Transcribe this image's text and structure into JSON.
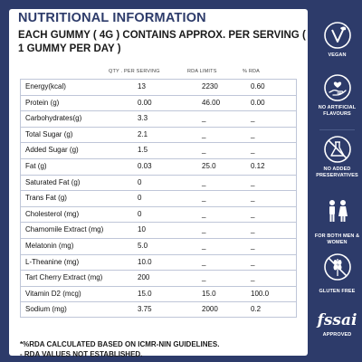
{
  "header": {
    "title": "NUTRITIONAL INFORMATION",
    "subtitle": "EACH GUMMY ( 4G ) CONTAINS APPROX. PER SERVING ( 1 GUMMY PER DAY )"
  },
  "table": {
    "columns": [
      "",
      "QTY . PER SERVING",
      "RDA LIMITS",
      "% RDA"
    ],
    "rows": [
      {
        "name": "Energy(kcal)",
        "qty": "13",
        "rda": "2230",
        "pct": "0.60"
      },
      {
        "name": "Protein (g)",
        "qty": "0.00",
        "rda": "46.00",
        "pct": "0.00"
      },
      {
        "name": "Carbohydrates(g)",
        "qty": "3.3",
        "rda": "_",
        "pct": "_"
      },
      {
        "name": "Total Sugar (g)",
        "qty": "2.1",
        "rda": "_",
        "pct": "_"
      },
      {
        "name": "Added Sugar (g)",
        "qty": "1.5",
        "rda": "_",
        "pct": "_"
      },
      {
        "name": "Fat (g)",
        "qty": "0.03",
        "rda": "25.0",
        "pct": "0.12"
      },
      {
        "name": "Saturated Fat (g)",
        "qty": "0",
        "rda": "_",
        "pct": "_"
      },
      {
        "name": "Trans Fat (g)",
        "qty": "0",
        "rda": "_",
        "pct": "_"
      },
      {
        "name": "Cholesterol (mg)",
        "qty": "0",
        "rda": "_",
        "pct": "_"
      },
      {
        "name": "Chamomile Extract (mg)",
        "qty": "10",
        "rda": "_",
        "pct": "_"
      },
      {
        "name": "Melatonin (mg)",
        "qty": "5.0",
        "rda": "_",
        "pct": "_"
      },
      {
        "name": "L-Theanine (mg)",
        "qty": "10.0",
        "rda": "_",
        "pct": "_"
      },
      {
        "name": "Tart Cherry Extract (mg)",
        "qty": "200",
        "rda": "_",
        "pct": "_"
      },
      {
        "name": "Vitamin D2 (mcg)",
        "qty": "15.0",
        "rda": "15.0",
        "pct": "100.0"
      },
      {
        "name": "Sodium (mg)",
        "qty": "3.75",
        "rda": "2000",
        "pct": "0.2"
      }
    ]
  },
  "footnotes": [
    "*%RDA CALCULATED BASED ON ICMR-NIN GUIDELINES.",
    "- RDA VALUES NOT ESTABLISHED."
  ],
  "badges": {
    "vegan": "VEGAN",
    "no_artificial": "NO ARTIFICIAL FLAVOURS",
    "no_preservatives": "NO ADDED PRESERVATIVES",
    "men_women": "FOR BOTH MEN & WOMEN",
    "gluten_free": "GLUTEN FREE",
    "fssai_logo": "fssai",
    "fssai": "APPROVED"
  },
  "colors": {
    "navy": "#2d3b6a",
    "white": "#ffffff"
  }
}
